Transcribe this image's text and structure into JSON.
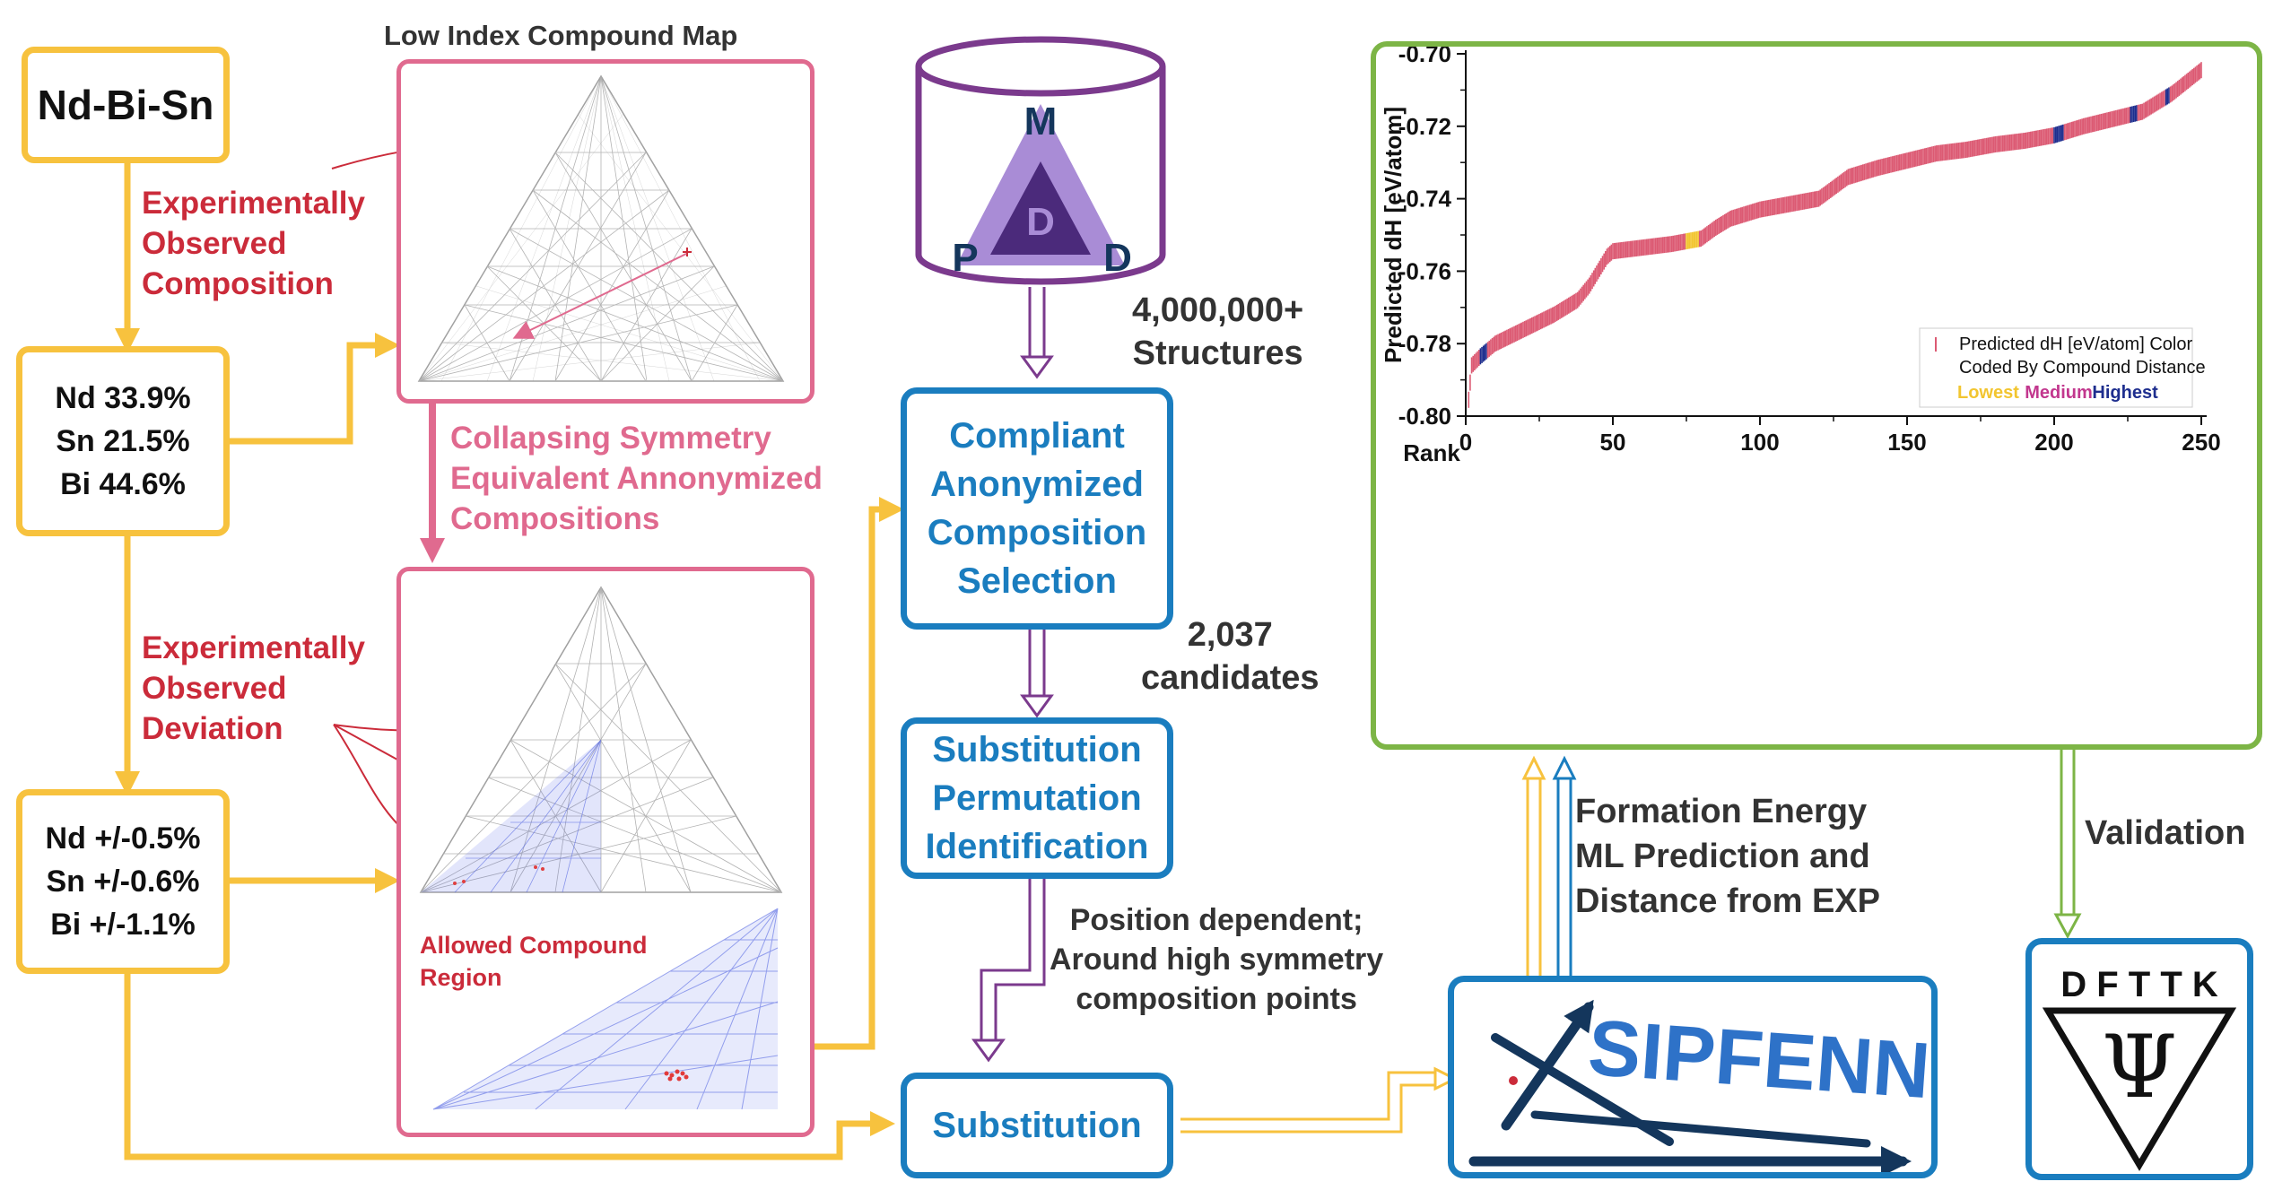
{
  "colors": {
    "yellow": "#F7C23E",
    "blue": "#1A7DBF",
    "purple": "#7B3A8D",
    "pink": "#E06A8F",
    "green": "#7DB546",
    "red": "#CB2B3A",
    "navy": "#14365C",
    "mpdd_light": "#A98CD6",
    "mpdd_dark": "#4B2A7B"
  },
  "system": {
    "name": "Nd-Bi-Sn"
  },
  "composition": {
    "lines": [
      "Nd 33.9%",
      "Sn 21.5%",
      "Bi 44.6%"
    ]
  },
  "deviation": {
    "lines": [
      "Nd +/-0.5%",
      "Sn +/-0.6%",
      "Bi +/-1.1%"
    ]
  },
  "labels": {
    "experimental_composition": [
      "Experimentally",
      "Observed",
      "Composition"
    ],
    "experimental_deviation": [
      "Experimentally",
      "Observed",
      "Deviation"
    ],
    "collapsing": [
      "Collapsing Symmetry",
      "Equivalent Annonymized",
      "Compositions"
    ],
    "allowed_region": [
      "Allowed Compound",
      "Region"
    ],
    "structures": [
      "4,000,000+",
      "Structures"
    ],
    "candidates": [
      "2,037",
      "candidates"
    ],
    "position": [
      "Position dependent;",
      "Around high symmetry",
      "composition points"
    ],
    "formation": [
      "Formation Energy",
      "ML Prediction and",
      "Distance from EXP"
    ],
    "validation": "Validation"
  },
  "map_title": "Low Index Compound Map",
  "mpdd": {
    "letters": {
      "top": "M",
      "center": "D",
      "left": "P",
      "right": "D"
    }
  },
  "steps": {
    "compliant": [
      "Compliant",
      "Anonymized",
      "Composition",
      "Selection"
    ],
    "permutation": [
      "Substitution",
      "Permutation",
      "Identification"
    ],
    "substitution": "Substitution"
  },
  "sipfenn": {
    "text": "SIPFENN",
    "icon": "neural-vector-icon"
  },
  "dfttk": {
    "text": "D F T T K",
    "symbol": "Ψ"
  },
  "chart_data": {
    "type": "scatter",
    "marker": "vertical-bar",
    "ylabel": "Predicted dH [eV/atom]",
    "xlabel": "Rank",
    "xlim": [
      0,
      250
    ],
    "ylim": [
      -0.8,
      -0.7
    ],
    "x_ticks": [
      "0",
      "50",
      "100",
      "150",
      "200",
      "250"
    ],
    "y_ticks": [
      "-0.70",
      "-0.72",
      "-0.74",
      "-0.76",
      "-0.78",
      "-0.80"
    ],
    "grid": false,
    "legend": {
      "placement": "bottom-right",
      "lines": [
        "Predicted dH [eV/atom] Color",
        "Coded By Compound Distance"
      ],
      "scale": [
        {
          "label": "Lowest",
          "color": "#F2C530"
        },
        {
          "label": "Medium",
          "color": "#C2378E"
        },
        {
          "label": "Highest",
          "color": "#1E2E8E"
        }
      ]
    },
    "series": [
      {
        "points": [
          [
            1,
            -0.7955
          ],
          [
            2,
            -0.786
          ],
          [
            5,
            -0.7835
          ],
          [
            10,
            -0.78
          ],
          [
            20,
            -0.776
          ],
          [
            30,
            -0.772
          ],
          [
            38,
            -0.768
          ],
          [
            42,
            -0.764
          ],
          [
            45,
            -0.76
          ],
          [
            48,
            -0.756
          ],
          [
            50,
            -0.7545
          ],
          [
            60,
            -0.7535
          ],
          [
            70,
            -0.7525
          ],
          [
            80,
            -0.751
          ],
          [
            85,
            -0.748
          ],
          [
            90,
            -0.7455
          ],
          [
            100,
            -0.743
          ],
          [
            110,
            -0.7415
          ],
          [
            120,
            -0.74
          ],
          [
            125,
            -0.737
          ],
          [
            130,
            -0.734
          ],
          [
            140,
            -0.7315
          ],
          [
            150,
            -0.7295
          ],
          [
            160,
            -0.7275
          ],
          [
            170,
            -0.7265
          ],
          [
            180,
            -0.725
          ],
          [
            190,
            -0.724
          ],
          [
            200,
            -0.7225
          ],
          [
            210,
            -0.72
          ],
          [
            220,
            -0.718
          ],
          [
            230,
            -0.716
          ],
          [
            240,
            -0.711
          ],
          [
            250,
            -0.7045
          ]
        ],
        "default_color": "#DC5A73",
        "highlights": [
          {
            "x_range": [
              75,
              79
            ],
            "color": "#F2C530"
          },
          {
            "x_range": [
              5,
              7
            ],
            "color": "#1E2E8E"
          },
          {
            "x_range": [
              200,
              203
            ],
            "color": "#1E2E8E"
          },
          {
            "x_range": [
              226,
              228
            ],
            "color": "#1E2E8E"
          },
          {
            "x_range": [
              238,
              239
            ],
            "color": "#1E2E8E"
          }
        ]
      }
    ]
  }
}
